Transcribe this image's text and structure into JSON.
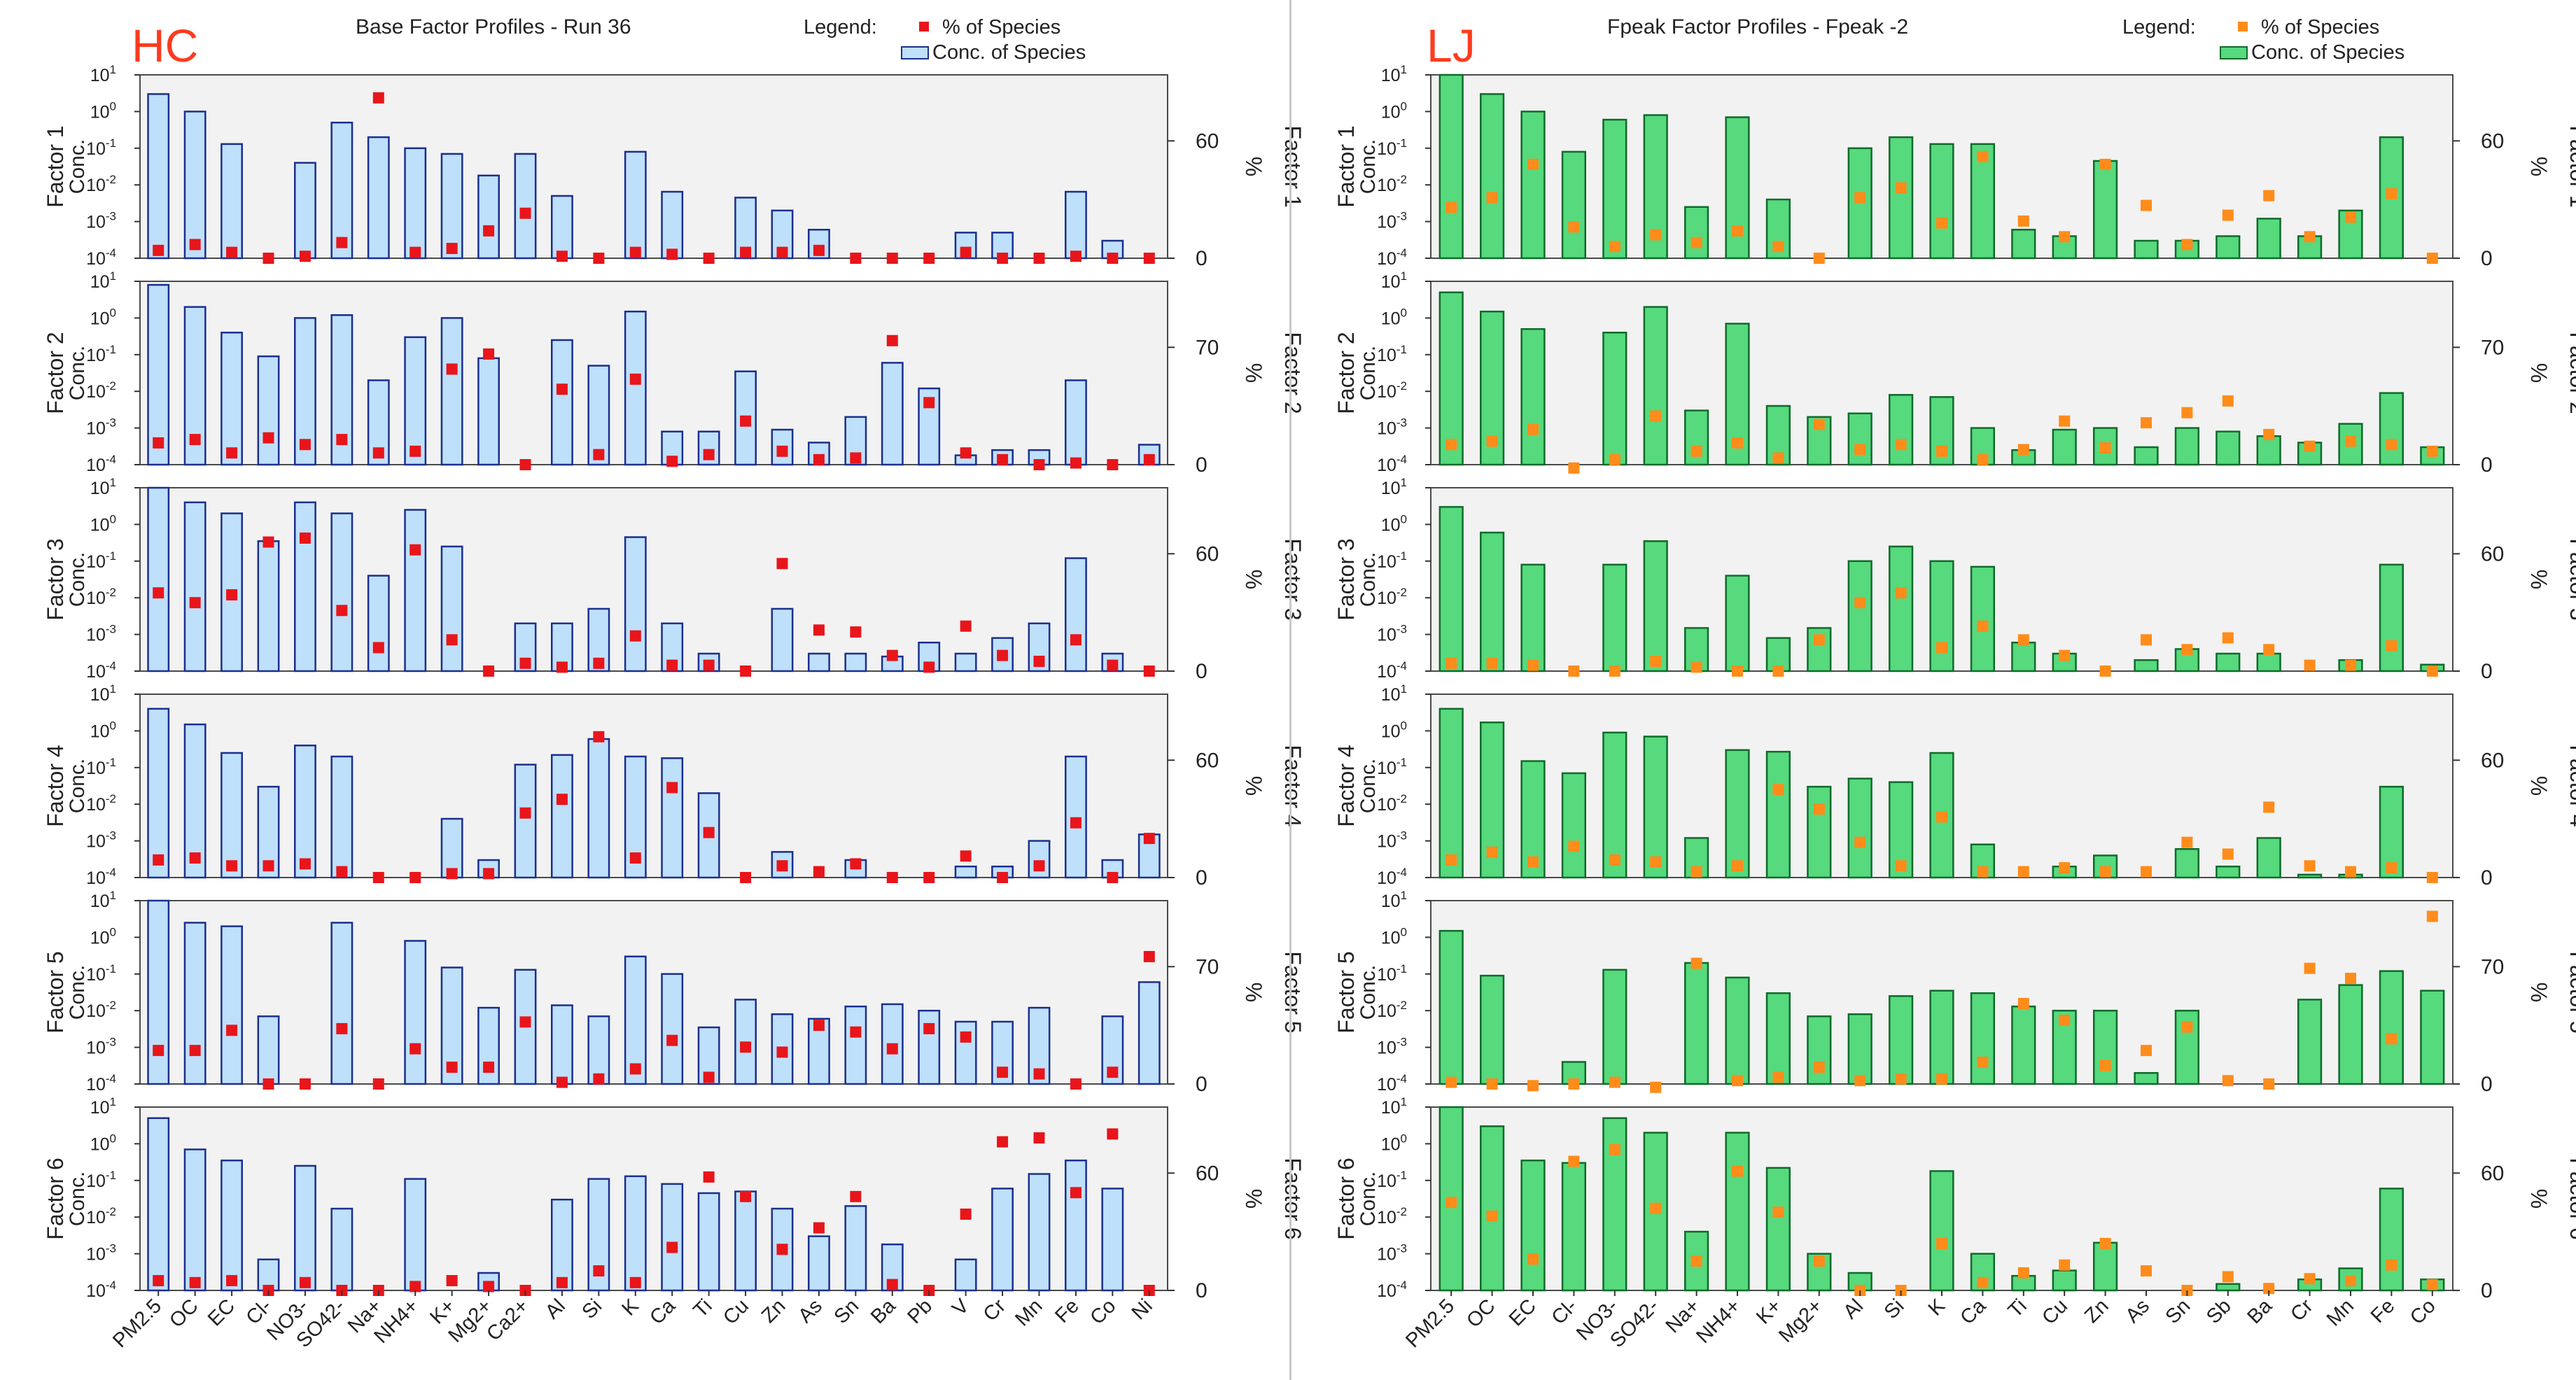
{
  "chart_data": [
    {
      "type": "bar",
      "id": "hc",
      "panel_tag": "HC",
      "title": "Base Factor Profiles - Run 36",
      "legend_title": "Legend:",
      "legend_point": "% of Species",
      "legend_bar": "Conc. of Species",
      "colors": {
        "bar_fill": "#bfe0fa",
        "bar_stroke": "#1b2f8f",
        "point": "#e8151b",
        "tag": "#ff3b1f"
      },
      "conc_label": "Conc.",
      "pct_label": "%",
      "y_scale": "log",
      "ylim": [
        0.0001,
        10
      ],
      "y_ticks": [
        "10^1",
        "10^0",
        "10^-1",
        "10^-2",
        "10^-3",
        "10^-4"
      ],
      "categories": [
        "PM2.5",
        "OC",
        "EC",
        "Cl-",
        "NO3-",
        "SO42-",
        "Na+",
        "NH4+",
        "K+",
        "Mg2+",
        "Ca2+",
        "Al",
        "Si",
        "K",
        "Ca",
        "Ti",
        "Cu",
        "Zn",
        "As",
        "Sn",
        "Ba",
        "Pb",
        "V",
        "Cr",
        "Mn",
        "Fe",
        "Co",
        "Ni"
      ],
      "factors": [
        {
          "name": "Factor 1",
          "pct_max": 60,
          "pct_ticks": [
            "60",
            "0"
          ],
          "values": [
            3,
            1,
            0.13,
            null,
            0.04,
            0.5,
            0.2,
            0.1,
            0.07,
            0.018,
            0.07,
            0.005,
            null,
            0.08,
            0.0065,
            null,
            0.0045,
            0.002,
            0.0006,
            null,
            null,
            null,
            0.0005,
            0.0005,
            null,
            0.0065,
            0.0003,
            null
          ],
          "pct": [
            4,
            7,
            3,
            0,
            1,
            8,
            82,
            3,
            5,
            14,
            23,
            1,
            0,
            3,
            2,
            0,
            3,
            3,
            4,
            0,
            0,
            0,
            3,
            0,
            0,
            1,
            0,
            0
          ]
        },
        {
          "name": "Factor 2",
          "pct_max": 70,
          "pct_ticks": [
            "70",
            "0"
          ],
          "values": [
            8,
            2,
            0.4,
            0.09,
            1,
            1.2,
            0.02,
            0.3,
            1,
            0.08,
            null,
            0.25,
            0.05,
            1.5,
            0.0008,
            0.0008,
            0.035,
            0.0009,
            0.0004,
            0.002,
            0.06,
            0.012,
            0.00018,
            0.00025,
            0.00025,
            0.02,
            null,
            0.00035
          ],
          "pct": [
            13,
            15,
            7,
            16,
            12,
            15,
            7,
            8,
            57,
            66,
            0,
            45,
            6,
            51,
            2,
            6,
            26,
            8,
            3,
            4,
            74,
            37,
            7,
            3,
            0,
            1,
            0,
            3
          ]
        },
        {
          "name": "Factor 3",
          "pct_max": 60,
          "pct_ticks": [
            "60",
            "0"
          ],
          "values": [
            25,
            4,
            2,
            0.35,
            4,
            2,
            0.04,
            2.5,
            0.25,
            null,
            0.002,
            0.002,
            0.005,
            0.45,
            0.002,
            0.0003,
            null,
            0.005,
            0.0003,
            0.0003,
            0.00025,
            0.0006,
            0.0003,
            0.0008,
            0.002,
            0.12,
            0.0003,
            null
          ],
          "pct": [
            40,
            35,
            39,
            66,
            68,
            31,
            12,
            62,
            16,
            0,
            4,
            2,
            4,
            18,
            3,
            3,
            0,
            55,
            21,
            20,
            8,
            2,
            23,
            8,
            5,
            16,
            3,
            0
          ]
        },
        {
          "name": "Factor 4",
          "pct_max": 60,
          "pct_ticks": [
            "60",
            "0"
          ],
          "values": [
            4,
            1.5,
            0.25,
            0.03,
            0.4,
            0.2,
            null,
            null,
            0.004,
            0.0003,
            0.12,
            0.22,
            0.6,
            0.2,
            0.18,
            0.02,
            null,
            0.0005,
            6e-05,
            0.0003,
            null,
            null,
            0.0002,
            0.0002,
            0.001,
            0.2,
            0.0003,
            0.0015
          ],
          "pct": [
            9,
            10,
            6,
            6,
            7,
            3,
            0,
            0,
            2,
            2,
            33,
            40,
            72,
            10,
            46,
            23,
            0,
            6,
            3,
            7,
            0,
            0,
            11,
            0,
            6,
            28,
            0,
            20
          ]
        },
        {
          "name": "Factor 5",
          "pct_max": 70,
          "pct_ticks": [
            "70",
            "0"
          ],
          "values": [
            10,
            2.5,
            2,
            0.007,
            null,
            2.5,
            null,
            0.8,
            0.15,
            0.012,
            0.13,
            0.014,
            0.007,
            0.3,
            0.1,
            0.0035,
            0.02,
            0.008,
            0.006,
            0.013,
            0.015,
            0.01,
            0.005,
            0.005,
            0.012,
            null,
            0.007,
            0.06
          ],
          "pct": [
            20,
            20,
            32,
            0,
            0,
            33,
            0,
            21,
            10,
            10,
            37,
            1,
            3,
            9,
            26,
            4,
            22,
            19,
            35,
            31,
            21,
            33,
            28,
            7,
            6,
            0,
            7,
            76
          ]
        },
        {
          "name": "Factor 6",
          "pct_max": 60,
          "pct_ticks": [
            "60",
            "0"
          ],
          "values": [
            5,
            0.7,
            0.35,
            0.0007,
            0.25,
            0.017,
            null,
            0.11,
            null,
            0.0003,
            null,
            0.03,
            0.11,
            0.13,
            0.08,
            0.045,
            0.05,
            0.017,
            0.003,
            0.02,
            0.0018,
            null,
            0.0007,
            0.06,
            0.15,
            0.35,
            0.06,
            null
          ],
          "pct": [
            5,
            4,
            5,
            0,
            4,
            0,
            0,
            2,
            5,
            2,
            0,
            4,
            10,
            4,
            22,
            58,
            48,
            21,
            32,
            48,
            3,
            0,
            39,
            76,
            78,
            50,
            80,
            0
          ]
        }
      ]
    },
    {
      "type": "bar",
      "id": "lj",
      "panel_tag": "LJ",
      "title": "Fpeak Factor Profiles - Fpeak -2",
      "legend_title": "Legend:",
      "legend_point": "% of Species",
      "legend_bar": "Conc. of Species",
      "colors": {
        "bar_fill": "#57d97d",
        "bar_stroke": "#0e6b2a",
        "point": "#ff8c1a",
        "tag": "#ff3b1f"
      },
      "conc_label": "Conc.",
      "pct_label": "%",
      "y_scale": "log",
      "ylim": [
        0.0001,
        10
      ],
      "y_ticks": [
        "10^1",
        "10^0",
        "10^-1",
        "10^-2",
        "10^-3",
        "10^-4"
      ],
      "categories": [
        "PM2.5",
        "OC",
        "EC",
        "Cl-",
        "NO3-",
        "SO42-",
        "Na+",
        "NH4+",
        "K+",
        "Mg2+",
        "Al",
        "Si",
        "K",
        "Ca",
        "Ti",
        "Cu",
        "Zn",
        "As",
        "Sn",
        "Sb",
        "Ba",
        "Cr",
        "Mn",
        "Fe",
        "Co"
      ],
      "factors": [
        {
          "name": "Factor 1",
          "pct_max": 60,
          "pct_ticks": [
            "60",
            "0"
          ],
          "values": [
            10,
            3,
            1,
            0.08,
            0.6,
            0.8,
            0.0025,
            0.7,
            0.004,
            null,
            0.1,
            0.2,
            0.13,
            0.13,
            0.0006,
            0.0004,
            0.045,
            0.0003,
            0.0003,
            0.0004,
            0.0012,
            0.0004,
            0.002,
            0.2,
            null
          ],
          "pct": [
            26,
            31,
            48,
            16,
            6,
            12,
            8,
            14,
            6,
            0,
            31,
            36,
            18,
            52,
            19,
            11,
            48,
            27,
            7,
            22,
            32,
            11,
            21,
            33,
            0
          ]
        },
        {
          "name": "Factor 2",
          "pct_max": 70,
          "pct_ticks": [
            "70",
            "0"
          ],
          "values": [
            5,
            1.5,
            0.5,
            null,
            0.4,
            2,
            0.003,
            0.7,
            0.004,
            0.002,
            0.0025,
            0.008,
            0.007,
            0.001,
            0.00025,
            0.0009,
            0.001,
            0.0003,
            0.001,
            0.0008,
            0.0006,
            0.0004,
            0.0013,
            0.009,
            0.0003
          ],
          "pct": [
            12,
            14,
            21,
            -2,
            3,
            29,
            8,
            13,
            4,
            24,
            9,
            12,
            8,
            3,
            9,
            26,
            10,
            25,
            31,
            38,
            18,
            11,
            14,
            12,
            8
          ]
        },
        {
          "name": "Factor 3",
          "pct_max": 60,
          "pct_ticks": [
            "60",
            "0"
          ],
          "values": [
            3,
            0.6,
            0.08,
            null,
            0.08,
            0.35,
            0.0015,
            0.04,
            0.0008,
            0.0015,
            0.1,
            0.25,
            0.1,
            0.07,
            0.0006,
            0.0003,
            null,
            0.0002,
            0.0004,
            0.0003,
            0.0003,
            0.0001,
            0.0002,
            0.08,
            0.00015
          ],
          "pct": [
            4,
            4,
            3,
            0,
            0,
            5,
            2,
            0,
            0,
            16,
            35,
            40,
            12,
            23,
            16,
            8,
            0,
            16,
            11,
            17,
            11,
            3,
            3,
            13,
            0
          ]
        },
        {
          "name": "Factor 4",
          "pct_max": 60,
          "pct_ticks": [
            "60",
            "0"
          ],
          "values": [
            4,
            1.7,
            0.15,
            0.07,
            0.9,
            0.7,
            0.0012,
            0.3,
            0.27,
            0.03,
            0.05,
            0.04,
            0.25,
            0.0008,
            8e-05,
            0.0002,
            0.0004,
            4e-05,
            0.0006,
            0.0002,
            0.0012,
            0.00012,
            0.00012,
            0.03,
            null
          ],
          "pct": [
            9,
            13,
            8,
            16,
            9,
            8,
            3,
            6,
            45,
            35,
            18,
            6,
            31,
            3,
            3,
            5,
            3,
            3,
            18,
            12,
            36,
            6,
            3,
            5,
            0
          ]
        },
        {
          "name": "Factor 5",
          "pct_max": 70,
          "pct_ticks": [
            "70",
            "0"
          ],
          "values": [
            1.5,
            0.09,
            0.0001,
            0.0004,
            0.13,
            null,
            0.2,
            0.08,
            0.03,
            0.007,
            0.008,
            0.025,
            0.035,
            0.03,
            0.013,
            0.01,
            0.01,
            0.0002,
            0.01,
            5e-05,
            3e-05,
            0.02,
            0.05,
            0.12,
            0.035
          ],
          "pct": [
            1,
            0,
            -1,
            0,
            1,
            -2,
            72,
            2,
            4,
            10,
            2,
            3,
            3,
            13,
            48,
            38,
            11,
            20,
            34,
            2,
            0,
            69,
            63,
            27,
            100
          ]
        },
        {
          "name": "Factor 6",
          "pct_max": 60,
          "pct_ticks": [
            "60",
            "0"
          ],
          "values": [
            20,
            3,
            0.35,
            0.3,
            5,
            2,
            0.004,
            2,
            0.22,
            0.001,
            0.0003,
            null,
            0.18,
            0.001,
            0.00025,
            0.00035,
            0.002,
            0.0001,
            null,
            0.00015,
            3e-05,
            0.0002,
            0.0004,
            0.06,
            0.0002
          ],
          "pct": [
            45,
            38,
            16,
            66,
            72,
            42,
            15,
            61,
            40,
            15,
            0,
            0,
            24,
            4,
            9,
            13,
            24,
            10,
            0,
            7,
            1,
            6,
            5,
            13,
            3
          ]
        }
      ]
    }
  ]
}
